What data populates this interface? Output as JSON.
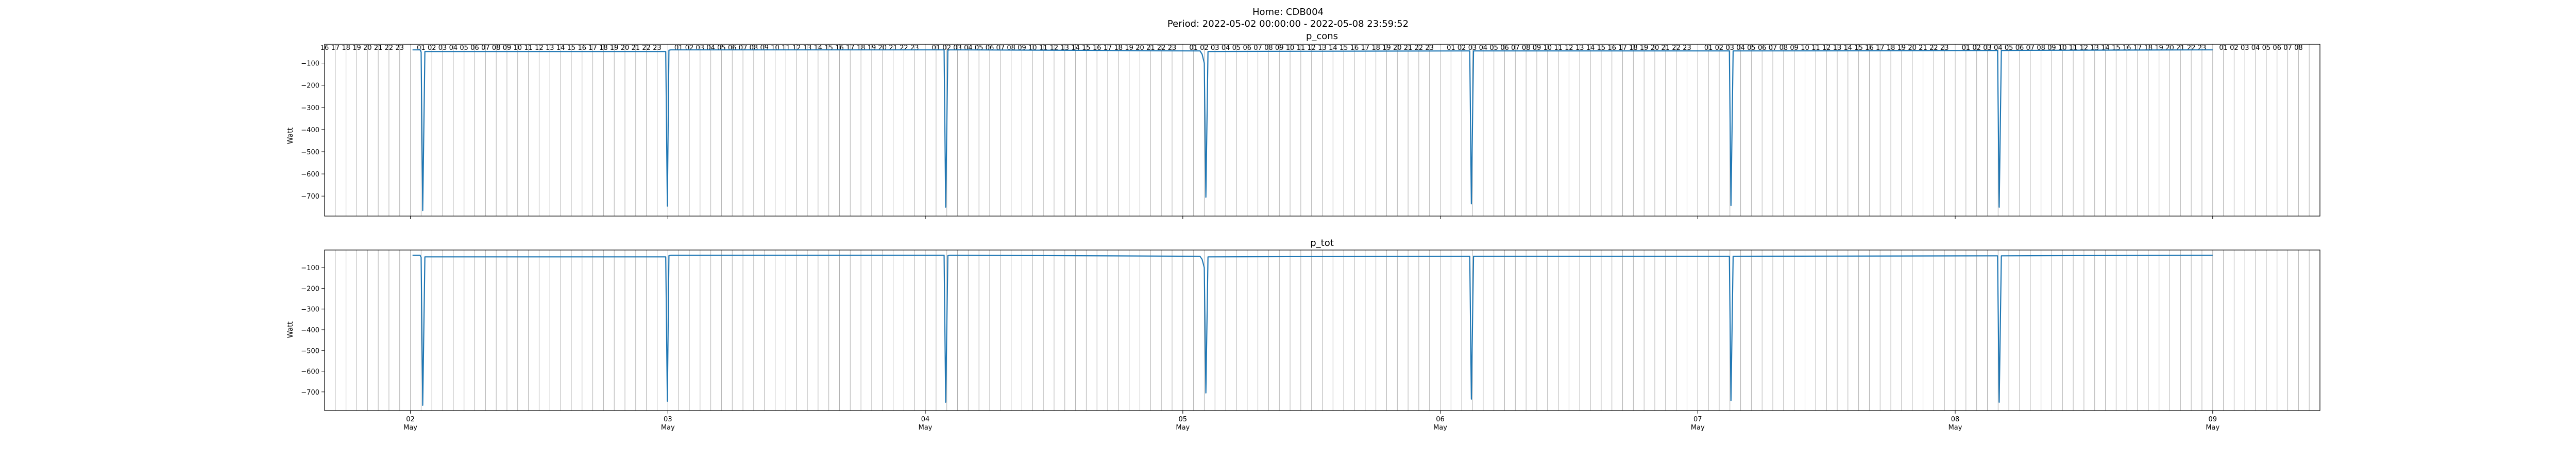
{
  "figure": {
    "title_line1": "Home: CDB004",
    "title_line2": "Period: 2022-05-02 00:00:00 - 2022-05-08 23:59:52"
  },
  "colors": {
    "line": "#1f77b4",
    "grid": "#b0b0b0",
    "axis": "#000000"
  },
  "chart_data": [
    {
      "type": "line",
      "title": "p_cons",
      "ylabel": "Watt",
      "x_unit": "hours since 2022-05-01 16:00",
      "xlim": [
        0,
        186
      ],
      "ylim": [
        -790,
        -15
      ],
      "yticks": [
        -100,
        -200,
        -300,
        -400,
        -500,
        -600,
        -700
      ],
      "yticklabels": [
        "−100",
        "−200",
        "−300",
        "−400",
        "−500",
        "−600",
        "−700"
      ],
      "hour_tick_labels": [
        "16",
        "17",
        "18",
        "19",
        "20",
        "21",
        "22",
        "23",
        "",
        "01",
        "02",
        "03",
        "04",
        "05",
        "06",
        "07",
        "08",
        "09",
        "10",
        "11",
        "12",
        "13",
        "14",
        "15",
        "16",
        "17",
        "18",
        "19",
        "20",
        "21",
        "22",
        "23",
        "",
        "01",
        "02",
        "03",
        "04",
        "05",
        "06",
        "07",
        "08",
        "09",
        "10",
        "11",
        "12",
        "13",
        "14",
        "15",
        "16",
        "17",
        "18",
        "19",
        "20",
        "21",
        "22",
        "23",
        "",
        "01",
        "02",
        "03",
        "04",
        "05",
        "06",
        "07",
        "08",
        "09",
        "10",
        "11",
        "12",
        "13",
        "14",
        "15",
        "16",
        "17",
        "18",
        "19",
        "20",
        "21",
        "22",
        "23",
        "",
        "01",
        "02",
        "03",
        "04",
        "05",
        "06",
        "07",
        "08",
        "09",
        "10",
        "11",
        "12",
        "13",
        "14",
        "15",
        "16",
        "17",
        "18",
        "19",
        "20",
        "21",
        "22",
        "23",
        "",
        "01",
        "02",
        "03",
        "04",
        "05",
        "06",
        "07",
        "08",
        "09",
        "10",
        "11",
        "12",
        "13",
        "14",
        "15",
        "16",
        "17",
        "18",
        "19",
        "20",
        "21",
        "22",
        "23",
        "",
        "01",
        "02",
        "03",
        "04",
        "05",
        "06",
        "07",
        "08",
        "09",
        "10",
        "11",
        "12",
        "13",
        "14",
        "15",
        "16",
        "17",
        "18",
        "19",
        "20",
        "21",
        "22",
        "23",
        "",
        "01",
        "02",
        "03",
        "04",
        "05",
        "06",
        "07",
        "08",
        "09",
        "10",
        "11",
        "12",
        "13",
        "14",
        "15",
        "16",
        "17",
        "18",
        "19",
        "20",
        "21",
        "22",
        "23",
        "",
        "01",
        "02",
        "03",
        "04",
        "05",
        "06",
        "07",
        "08"
      ],
      "series": [
        {
          "x": [
            8.2,
            8.9,
            9.0,
            9.15,
            9.35,
            31.8,
            31.95,
            32.1,
            32.3,
            57.75,
            57.9,
            58.1,
            58.3,
            81.6,
            81.8,
            82.0,
            82.15,
            82.35,
            106.6,
            106.75,
            106.9,
            107.1,
            130.8,
            130.95,
            131.1,
            131.3,
            155.8,
            155.95,
            156.1,
            156.3,
            176.0
          ],
          "y": [
            -40,
            -40,
            -50,
            -765,
            -48,
            -48,
            -745,
            -42,
            -40,
            -40,
            -750,
            -42,
            -40,
            -45,
            -60,
            -100,
            -705,
            -48,
            -45,
            -45,
            -735,
            -45,
            -45,
            -45,
            -742,
            -45,
            -43,
            -43,
            -750,
            -43,
            -40
          ]
        }
      ]
    },
    {
      "type": "line",
      "title": "p_tot",
      "ylabel": "Watt",
      "x_unit": "hours since 2022-05-01 16:00",
      "xlim": [
        0,
        186
      ],
      "ylim": [
        -790,
        -15
      ],
      "yticks": [
        -100,
        -200,
        -300,
        -400,
        -500,
        -600,
        -700
      ],
      "yticklabels": [
        "−100",
        "−200",
        "−300",
        "−400",
        "−500",
        "−600",
        "−700"
      ],
      "day_ticks": [
        {
          "x": 8,
          "day": "02",
          "month": "May"
        },
        {
          "x": 32,
          "day": "03",
          "month": "May"
        },
        {
          "x": 56,
          "day": "04",
          "month": "May"
        },
        {
          "x": 80,
          "day": "05",
          "month": "May"
        },
        {
          "x": 104,
          "day": "06",
          "month": "May"
        },
        {
          "x": 128,
          "day": "07",
          "month": "May"
        },
        {
          "x": 152,
          "day": "08",
          "month": "May"
        },
        {
          "x": 176,
          "day": "09",
          "month": "May"
        }
      ],
      "series": [
        {
          "x": [
            8.2,
            8.9,
            9.0,
            9.15,
            9.35,
            31.8,
            31.95,
            32.1,
            32.3,
            57.75,
            57.9,
            58.1,
            58.3,
            81.6,
            81.8,
            82.0,
            82.15,
            82.35,
            106.6,
            106.75,
            106.9,
            107.1,
            130.8,
            130.95,
            131.1,
            131.3,
            155.8,
            155.95,
            156.1,
            156.3,
            176.0
          ],
          "y": [
            -40,
            -40,
            -50,
            -765,
            -48,
            -48,
            -745,
            -42,
            -40,
            -40,
            -750,
            -42,
            -40,
            -45,
            -60,
            -100,
            -705,
            -48,
            -45,
            -45,
            -735,
            -45,
            -45,
            -45,
            -742,
            -45,
            -43,
            -43,
            -750,
            -43,
            -40
          ]
        }
      ]
    }
  ]
}
